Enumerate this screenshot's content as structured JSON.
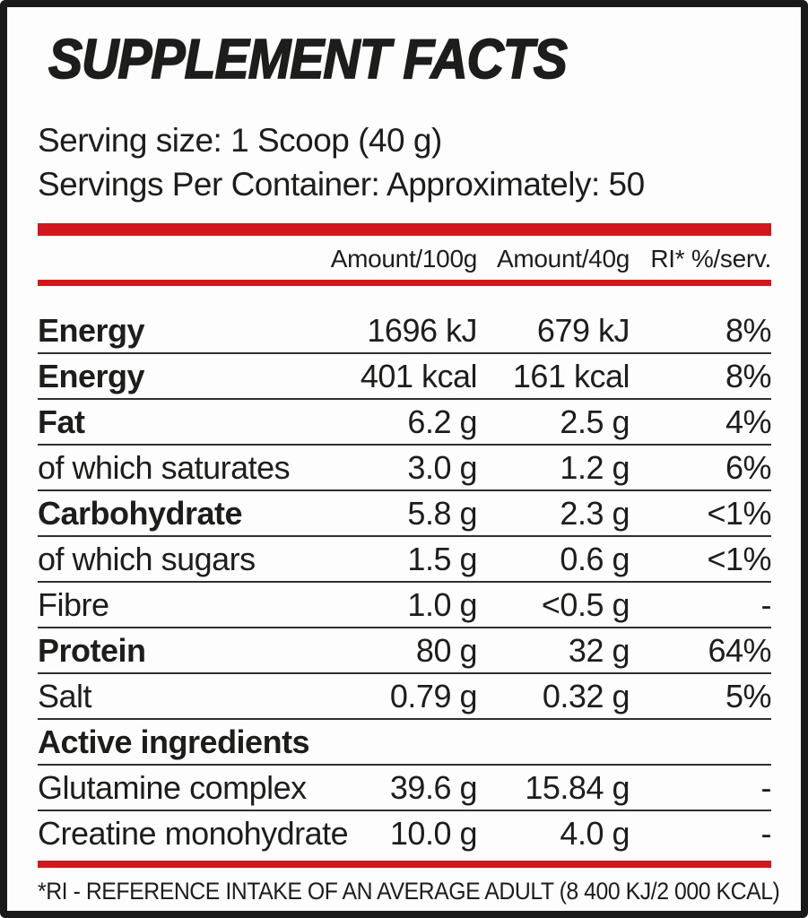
{
  "colors": {
    "accent_red": "#d2161d",
    "text": "#1d1d1b",
    "frame_border": "#191919"
  },
  "label": {
    "title": "SUPPLEMENT FACTS",
    "serving": {
      "size_line": "Serving size: 1 Scoop (40 g)",
      "per_container_line": "Servings Per Container: Approximately: 50"
    },
    "table": {
      "columns": [
        "Amount/100g",
        "Amount/40g",
        "RI* %/serv."
      ],
      "rows": [
        {
          "name": "Energy",
          "amount_100g": "1696 kJ",
          "amount_40g": "679 kJ",
          "ri": "8%"
        },
        {
          "name": "Energy",
          "amount_100g": "401 kcal",
          "amount_40g": "161 kcal",
          "ri": "8%"
        },
        {
          "name": "Fat",
          "amount_100g": "6.2 g",
          "amount_40g": "2.5 g",
          "ri": "4%"
        },
        {
          "name": "of which saturates",
          "amount_100g": "3.0 g",
          "amount_40g": "1.2 g",
          "ri": "6%"
        },
        {
          "name": "Carbohydrate",
          "amount_100g": "5.8 g",
          "amount_40g": "2.3 g",
          "ri": "<1%"
        },
        {
          "name": "of which sugars",
          "amount_100g": "1.5 g",
          "amount_40g": "0.6 g",
          "ri": "<1%"
        },
        {
          "name": "Fibre",
          "amount_100g": "1.0 g",
          "amount_40g": "<0.5 g",
          "ri": "-"
        },
        {
          "name": "Protein",
          "amount_100g": "80 g",
          "amount_40g": "32 g",
          "ri": "64%"
        },
        {
          "name": "Salt",
          "amount_100g": "0.79 g",
          "amount_40g": "0.32 g",
          "ri": "5%"
        },
        {
          "name": "Active ingredients",
          "amount_100g": "",
          "amount_40g": "",
          "ri": ""
        },
        {
          "name": "Glutamine complex",
          "amount_100g": "39.6 g",
          "amount_40g": "15.84 g",
          "ri": "-"
        },
        {
          "name": "Creatine monohydrate",
          "amount_100g": "10.0 g",
          "amount_40g": "4.0 g",
          "ri": "-"
        }
      ]
    },
    "footnote": "*RI - REFERENCE INTAKE OF AN AVERAGE ADULT (8 400 KJ/2 000 KCAL)"
  }
}
